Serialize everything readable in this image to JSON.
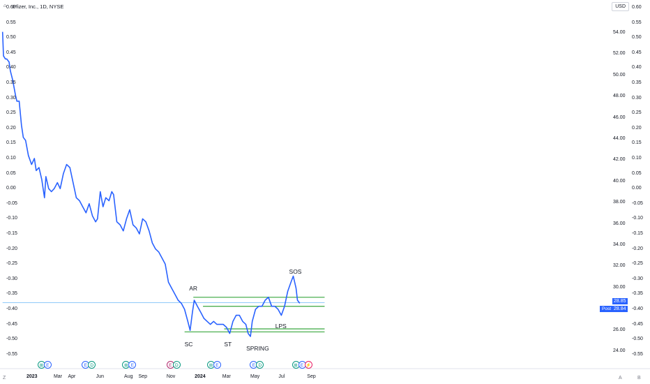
{
  "header": {
    "title": "Pfizer, Inc., 1D, NYSE",
    "currency": "USD",
    "corner_left": "Z",
    "corner_a": "A",
    "corner_b": "B"
  },
  "chart_data": {
    "type": "line",
    "series": [
      {
        "x": [
          "2022-11-01",
          "2022-11-03",
          "2022-11-07",
          "2022-11-10",
          "2022-11-15",
          "2022-11-18",
          "2022-11-23",
          "2022-11-29",
          "2022-12-02",
          "2022-12-07",
          "2022-12-12",
          "2022-12-16",
          "2022-12-21",
          "2022-12-27",
          "2023-01-03",
          "2023-01-09",
          "2023-01-13",
          "2023-01-19",
          "2023-01-25",
          "2023-01-31",
          "2023-02-03",
          "2023-02-09",
          "2023-02-15",
          "2023-02-21",
          "2023-02-28",
          "2023-03-06",
          "2023-03-13",
          "2023-03-20",
          "2023-03-27",
          "2023-04-03",
          "2023-04-10",
          "2023-04-17",
          "2023-04-24",
          "2023-05-01",
          "2023-05-08",
          "2023-05-15",
          "2023-05-22",
          "2023-05-26",
          "2023-06-01",
          "2023-06-07",
          "2023-06-13",
          "2023-06-20",
          "2023-06-26",
          "2023-06-30",
          "2023-07-07",
          "2023-07-14",
          "2023-07-21",
          "2023-07-28",
          "2023-08-04",
          "2023-08-11",
          "2023-08-18",
          "2023-08-25",
          "2023-09-01",
          "2023-09-08",
          "2023-09-15",
          "2023-09-22",
          "2023-09-29",
          "2023-10-06",
          "2023-10-13",
          "2023-10-20",
          "2023-10-27",
          "2023-11-03",
          "2023-11-10",
          "2023-11-17",
          "2023-11-24",
          "2023-12-01",
          "2023-12-08",
          "2023-12-13",
          "2023-12-18",
          "2023-12-22",
          "2023-12-29",
          "2024-01-05",
          "2024-01-12",
          "2024-01-19",
          "2024-01-26",
          "2024-02-02",
          "2024-02-09",
          "2024-02-16",
          "2024-02-23",
          "2024-03-01",
          "2024-03-08",
          "2024-03-15",
          "2024-03-22",
          "2024-03-29",
          "2024-04-05",
          "2024-04-12",
          "2024-04-17",
          "2024-04-22",
          "2024-04-26",
          "2024-05-03",
          "2024-05-10",
          "2024-05-17",
          "2024-05-24",
          "2024-05-31",
          "2024-06-07",
          "2024-06-14",
          "2024-06-21",
          "2024-06-28",
          "2024-07-05",
          "2024-07-12",
          "2024-07-19",
          "2024-07-24",
          "2024-07-30",
          "2024-08-02",
          "2024-08-07"
        ],
        "values": [
          0.52,
          0.44,
          0.43,
          0.43,
          0.42,
          0.39,
          0.36,
          0.31,
          0.29,
          0.29,
          0.21,
          0.17,
          0.16,
          0.11,
          0.08,
          0.1,
          0.06,
          0.07,
          0.03,
          -0.03,
          0.04,
          0.0,
          -0.01,
          0.0,
          0.02,
          0.0,
          0.05,
          0.08,
          0.07,
          0.02,
          -0.03,
          -0.04,
          -0.06,
          -0.08,
          -0.05,
          -0.09,
          -0.11,
          -0.1,
          -0.01,
          -0.06,
          -0.03,
          -0.04,
          -0.01,
          -0.02,
          -0.11,
          -0.12,
          -0.14,
          -0.1,
          -0.07,
          -0.12,
          -0.13,
          -0.15,
          -0.1,
          -0.11,
          -0.14,
          -0.18,
          -0.2,
          -0.21,
          -0.23,
          -0.25,
          -0.31,
          -0.33,
          -0.35,
          -0.37,
          -0.38,
          -0.4,
          -0.44,
          -0.47,
          -0.41,
          -0.37,
          -0.39,
          -0.41,
          -0.43,
          -0.44,
          -0.45,
          -0.44,
          -0.45,
          -0.45,
          -0.45,
          -0.46,
          -0.48,
          -0.44,
          -0.42,
          -0.42,
          -0.44,
          -0.45,
          -0.48,
          -0.49,
          -0.44,
          -0.4,
          -0.39,
          -0.39,
          -0.37,
          -0.36,
          -0.39,
          -0.39,
          -0.4,
          -0.42,
          -0.39,
          -0.34,
          -0.31,
          -0.29,
          -0.33,
          -0.37,
          -0.38
        ]
      }
    ],
    "y_left": {
      "ticks": [
        "0.60",
        "0.55",
        "0.50",
        "0.45",
        "0.40",
        "0.35",
        "0.30",
        "0.25",
        "0.20",
        "0.15",
        "0.10",
        "0.05",
        "0.00",
        "-0.05",
        "-0.10",
        "-0.15",
        "-0.20",
        "-0.25",
        "-0.30",
        "-0.35",
        "-0.40",
        "-0.45",
        "-0.50",
        "-0.55"
      ]
    },
    "y_right_inner": {
      "ticks": [
        "54.00",
        "52.00",
        "50.00",
        "48.00",
        "46.00",
        "44.00",
        "42.00",
        "40.00",
        "38.00",
        "36.00",
        "34.00",
        "32.00",
        "30.00",
        "28.00",
        "26.00",
        "24.00"
      ]
    },
    "y_right_outer": {
      "ticks": [
        "0.60",
        "0.55",
        "0.50",
        "0.45",
        "0.40",
        "0.35",
        "0.30",
        "0.25",
        "0.20",
        "0.15",
        "0.10",
        "0.05",
        "0.00",
        "-0.05",
        "-0.10",
        "-0.15",
        "-0.20",
        "-0.25",
        "-0.30",
        "-0.35",
        "-0.40",
        "-0.45",
        "-0.50",
        "-0.55"
      ]
    },
    "x_axis": {
      "labels": [
        {
          "text": "2023",
          "date": "2023-01-01",
          "major": true
        },
        {
          "text": "Mar",
          "date": "2023-03-01",
          "major": false
        },
        {
          "text": "Apr",
          "date": "2023-04-01",
          "major": false
        },
        {
          "text": "Jun",
          "date": "2023-06-01",
          "major": false
        },
        {
          "text": "Aug",
          "date": "2023-08-01",
          "major": false
        },
        {
          "text": "Sep",
          "date": "2023-09-01",
          "major": false
        },
        {
          "text": "Nov",
          "date": "2023-11-01",
          "major": false
        },
        {
          "text": "2024",
          "date": "2024-01-01",
          "major": true
        },
        {
          "text": "Mar",
          "date": "2024-03-01",
          "major": false
        },
        {
          "text": "May",
          "date": "2024-05-01",
          "major": false
        },
        {
          "text": "Jul",
          "date": "2024-07-01",
          "major": false
        },
        {
          "text": "Sep",
          "date": "2024-09-01",
          "major": false
        }
      ]
    },
    "levels": [
      {
        "from": "2023-12-20",
        "to": "2024-09-30",
        "value": -0.36,
        "color": "#4caf50"
      },
      {
        "from": "2024-01-10",
        "to": "2024-09-30",
        "value": -0.39,
        "color": "#4caf50"
      },
      {
        "from": "2024-02-25",
        "to": "2024-09-30",
        "value": -0.465,
        "color": "#4caf50"
      },
      {
        "from": "2023-12-01",
        "to": "2024-09-30",
        "value": -0.475,
        "color": "#4caf50"
      },
      {
        "from": "2022-11-01",
        "to": "2024-09-30",
        "value": -0.378,
        "color": "#90caf9"
      }
    ],
    "annotations": [
      {
        "text": "AR",
        "date": "2023-12-20",
        "value": -0.33
      },
      {
        "text": "SC",
        "date": "2023-12-10",
        "value": -0.515
      },
      {
        "text": "ST",
        "date": "2024-03-05",
        "value": -0.515
      },
      {
        "text": "SPRING",
        "date": "2024-04-22",
        "value": -0.53
      },
      {
        "text": "LPS",
        "date": "2024-06-24",
        "value": -0.455
      },
      {
        "text": "SOS",
        "date": "2024-07-24",
        "value": -0.275
      }
    ],
    "price_labels": {
      "last": "28.85",
      "post_label": "Post",
      "post": "28.84"
    },
    "events": [
      {
        "date": "2023-01-25",
        "items": [
          "div",
          "earn"
        ],
        "glyphs": [
          "⊞",
          "E"
        ]
      },
      {
        "date": "2023-05-01",
        "items": [
          "earn",
          "div"
        ],
        "glyphs": [
          "E",
          "D"
        ]
      },
      {
        "date": "2023-07-28",
        "items": [
          "div",
          "earn"
        ],
        "glyphs": [
          "⊞",
          "E"
        ]
      },
      {
        "date": "2023-11-01",
        "items": [
          "est",
          "div"
        ],
        "glyphs": [
          "E",
          "D"
        ]
      },
      {
        "date": "2024-01-28",
        "items": [
          "div",
          "earn"
        ],
        "glyphs": [
          "⊞",
          "E"
        ]
      },
      {
        "date": "2024-04-30",
        "items": [
          "earn",
          "div"
        ],
        "glyphs": [
          "E",
          "D"
        ]
      },
      {
        "date": "2024-07-30",
        "items": [
          "div",
          "earn",
          "spl"
        ],
        "glyphs": [
          "⊞",
          "E",
          "⚡"
        ]
      }
    ],
    "colors": {
      "line": "#2962ff",
      "level": "#4caf50",
      "last_price_line": "#90caf9"
    },
    "grid": false
  }
}
